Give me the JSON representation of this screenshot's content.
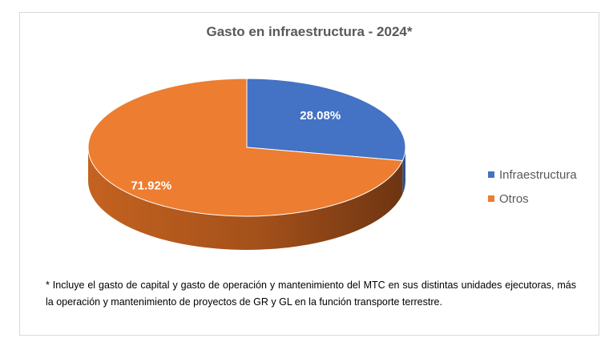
{
  "chart_data": {
    "type": "pie",
    "title": "Gasto en infraestructura - 2024*",
    "slices": [
      {
        "name": "Infraestructura",
        "value": 28.08,
        "label": "28.08%",
        "color": "#4472c4"
      },
      {
        "name": "Otros",
        "value": 71.92,
        "label": "71.92%",
        "color": "#ed7d31"
      }
    ],
    "legend_position": "right",
    "style": "3d"
  },
  "footnote": "* Incluye el gasto de capital y gasto de operación y mantenimiento del MTC en sus distintas unidades ejecutoras, más la operación y mantenimiento de proyectos de GR y GL en la función transporte terrestre."
}
